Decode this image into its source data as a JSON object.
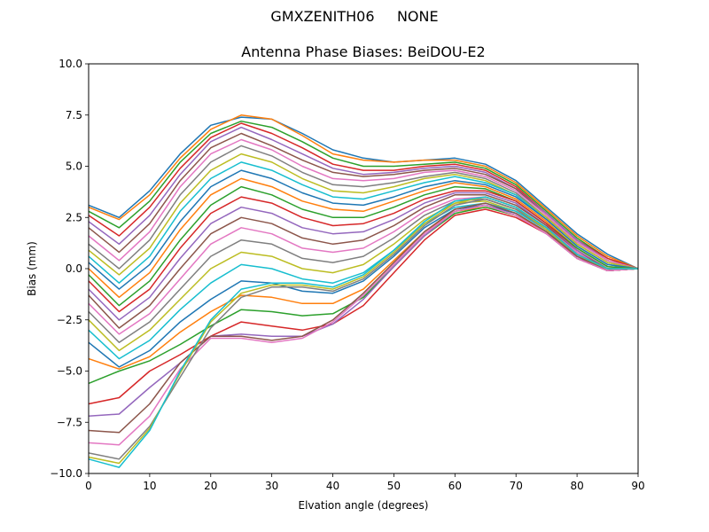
{
  "figure": {
    "suptitle": "GMXZENITH06     NONE"
  },
  "chart_data": {
    "type": "line",
    "title": "Antenna Phase Biases: BeiDOU-E2",
    "xlabel": "Elvation angle (degrees)",
    "ylabel": "Bias (mm)",
    "xlim": [
      0,
      90
    ],
    "ylim": [
      -10,
      10
    ],
    "xticks": [
      0,
      10,
      20,
      30,
      40,
      50,
      60,
      70,
      80,
      90
    ],
    "yticks": [
      -10.0,
      -7.5,
      -5.0,
      -2.5,
      0.0,
      2.5,
      5.0,
      7.5,
      10.0
    ],
    "xtick_labels": [
      "0",
      "10",
      "20",
      "30",
      "40",
      "50",
      "60",
      "70",
      "80",
      "90"
    ],
    "ytick_labels": [
      "−10.0",
      "−7.5",
      "−5.0",
      "−2.5",
      "0.0",
      "2.5",
      "5.0",
      "7.5",
      "10.0"
    ],
    "grid": false,
    "legend": "none",
    "colors": [
      "#1f77b4",
      "#ff7f0e",
      "#2ca02c",
      "#d62728",
      "#9467bd",
      "#8c564b",
      "#e377c2",
      "#7f7f7f",
      "#bcbd22",
      "#17becf"
    ],
    "x": [
      0,
      5,
      10,
      15,
      20,
      25,
      30,
      35,
      40,
      45,
      50,
      55,
      60,
      65,
      70,
      75,
      80,
      85,
      90
    ],
    "series": [
      {
        "values": [
          3.1,
          2.5,
          3.8,
          5.6,
          7.0,
          7.4,
          7.3,
          6.6,
          5.8,
          5.4,
          5.2,
          5.3,
          5.4,
          5.1,
          4.3,
          3.0,
          1.7,
          0.7,
          0.0
        ]
      },
      {
        "values": [
          3.0,
          2.4,
          3.6,
          5.4,
          6.8,
          7.5,
          7.3,
          6.5,
          5.6,
          5.3,
          5.2,
          5.3,
          5.3,
          5.0,
          4.2,
          2.9,
          1.6,
          0.6,
          0.0
        ]
      },
      {
        "values": [
          2.8,
          2.0,
          3.3,
          5.2,
          6.6,
          7.2,
          6.9,
          6.2,
          5.4,
          5.0,
          5.0,
          5.1,
          5.2,
          4.9,
          4.1,
          2.8,
          1.5,
          0.5,
          0.0
        ]
      },
      {
        "values": [
          2.6,
          1.6,
          3.0,
          4.9,
          6.4,
          7.1,
          6.6,
          5.9,
          5.1,
          4.8,
          4.8,
          5.0,
          5.1,
          4.8,
          4.0,
          2.7,
          1.4,
          0.5,
          0.0
        ]
      },
      {
        "values": [
          2.3,
          1.2,
          2.6,
          4.6,
          6.2,
          6.9,
          6.3,
          5.6,
          4.9,
          4.6,
          4.7,
          4.9,
          5.0,
          4.7,
          3.9,
          2.7,
          1.4,
          0.4,
          0.0
        ]
      },
      {
        "values": [
          2.0,
          0.8,
          2.2,
          4.3,
          5.9,
          6.6,
          6.0,
          5.3,
          4.7,
          4.5,
          4.6,
          4.8,
          4.9,
          4.6,
          3.9,
          2.6,
          1.3,
          0.4,
          0.0
        ]
      },
      {
        "values": [
          1.6,
          0.4,
          1.8,
          4.0,
          5.6,
          6.3,
          5.8,
          5.0,
          4.4,
          4.3,
          4.4,
          4.7,
          4.8,
          4.5,
          3.8,
          2.6,
          1.3,
          0.4,
          0.0
        ]
      },
      {
        "values": [
          1.2,
          0.0,
          1.4,
          3.6,
          5.2,
          6.0,
          5.5,
          4.7,
          4.1,
          4.0,
          4.2,
          4.5,
          4.7,
          4.4,
          3.7,
          2.5,
          1.2,
          0.3,
          0.0
        ]
      },
      {
        "values": [
          0.9,
          -0.3,
          1.0,
          3.2,
          4.8,
          5.6,
          5.2,
          4.4,
          3.8,
          3.7,
          4.0,
          4.4,
          4.6,
          4.3,
          3.6,
          2.5,
          1.2,
          0.3,
          0.0
        ]
      },
      {
        "values": [
          0.6,
          -0.7,
          0.6,
          2.8,
          4.4,
          5.2,
          4.8,
          4.1,
          3.5,
          3.4,
          3.8,
          4.2,
          4.5,
          4.2,
          3.6,
          2.4,
          1.1,
          0.2,
          0.0
        ]
      },
      {
        "values": [
          0.3,
          -1.0,
          0.2,
          2.3,
          4.0,
          4.8,
          4.4,
          3.7,
          3.2,
          3.1,
          3.5,
          4.0,
          4.3,
          4.1,
          3.5,
          2.4,
          1.1,
          0.2,
          0.0
        ]
      },
      {
        "values": [
          0.0,
          -1.4,
          -0.2,
          1.9,
          3.6,
          4.4,
          4.0,
          3.3,
          2.9,
          2.8,
          3.3,
          3.8,
          4.2,
          4.0,
          3.4,
          2.3,
          1.0,
          0.1,
          0.0
        ]
      },
      {
        "values": [
          -0.3,
          -1.8,
          -0.6,
          1.4,
          3.1,
          4.0,
          3.6,
          2.9,
          2.5,
          2.5,
          3.0,
          3.6,
          4.0,
          3.9,
          3.3,
          2.2,
          1.0,
          0.1,
          0.0
        ]
      },
      {
        "values": [
          -0.6,
          -2.1,
          -1.0,
          1.0,
          2.7,
          3.5,
          3.2,
          2.5,
          2.1,
          2.2,
          2.7,
          3.4,
          3.8,
          3.8,
          3.3,
          2.2,
          0.9,
          0.0,
          0.0
        ]
      },
      {
        "values": [
          -1.0,
          -2.5,
          -1.4,
          0.5,
          2.2,
          3.0,
          2.7,
          2.0,
          1.7,
          1.8,
          2.4,
          3.2,
          3.7,
          3.7,
          3.2,
          2.1,
          0.9,
          0.0,
          0.0
        ]
      },
      {
        "values": [
          -1.3,
          -2.9,
          -1.8,
          0.0,
          1.7,
          2.5,
          2.2,
          1.5,
          1.2,
          1.4,
          2.1,
          3.0,
          3.6,
          3.6,
          3.1,
          2.1,
          0.8,
          0.0,
          0.0
        ]
      },
      {
        "values": [
          -1.7,
          -3.2,
          -2.2,
          -0.5,
          1.2,
          2.0,
          1.7,
          1.0,
          0.8,
          1.0,
          1.8,
          2.8,
          3.4,
          3.5,
          3.0,
          2.0,
          0.8,
          -0.1,
          0.0
        ]
      },
      {
        "values": [
          -2.1,
          -3.6,
          -2.6,
          -1.0,
          0.6,
          1.4,
          1.2,
          0.5,
          0.3,
          0.6,
          1.5,
          2.6,
          3.3,
          3.4,
          2.9,
          2.0,
          0.7,
          -0.1,
          0.0
        ]
      },
      {
        "values": [
          -2.5,
          -4.0,
          -3.0,
          -1.5,
          0.0,
          0.8,
          0.6,
          0.0,
          -0.2,
          0.2,
          1.2,
          2.4,
          3.2,
          3.3,
          2.8,
          1.9,
          0.7,
          -0.1,
          0.0
        ]
      },
      {
        "values": [
          -3.0,
          -4.4,
          -3.5,
          -2.0,
          -0.7,
          0.2,
          0.0,
          -0.5,
          -0.7,
          -0.2,
          0.9,
          2.2,
          3.0,
          3.2,
          2.8,
          1.9,
          0.6,
          -0.1,
          0.0
        ]
      },
      {
        "values": [
          -3.6,
          -4.8,
          -4.0,
          -2.6,
          -1.5,
          -0.6,
          -0.7,
          -1.1,
          -1.2,
          -0.6,
          0.6,
          2.0,
          2.9,
          3.1,
          2.7,
          1.8,
          0.6,
          -0.1,
          0.0
        ]
      },
      {
        "values": [
          -4.4,
          -4.9,
          -4.3,
          -3.1,
          -2.1,
          -1.3,
          -1.4,
          -1.7,
          -1.7,
          -1.0,
          0.4,
          1.8,
          2.8,
          3.0,
          2.6,
          1.8,
          0.5,
          -0.1,
          0.0
        ]
      },
      {
        "values": [
          -5.6,
          -5.0,
          -4.5,
          -3.7,
          -2.8,
          -2.0,
          -2.1,
          -2.3,
          -2.2,
          -1.4,
          0.1,
          1.6,
          2.7,
          3.0,
          2.6,
          1.7,
          0.5,
          -0.1,
          0.0
        ]
      },
      {
        "values": [
          -6.6,
          -6.3,
          -5.0,
          -4.2,
          -3.3,
          -2.6,
          -2.8,
          -3.0,
          -2.7,
          -1.8,
          -0.2,
          1.4,
          2.6,
          2.9,
          2.5,
          1.7,
          0.5,
          -0.1,
          0.0
        ]
      },
      {
        "values": [
          -7.2,
          -7.1,
          -5.8,
          -4.6,
          -3.3,
          -3.2,
          -3.3,
          -3.3,
          -2.7,
          -1.5,
          0.1,
          1.6,
          2.8,
          3.1,
          2.6,
          1.7,
          0.5,
          -0.1,
          0.0
        ]
      },
      {
        "values": [
          -7.9,
          -8.0,
          -6.6,
          -4.6,
          -3.3,
          -3.3,
          -3.5,
          -3.3,
          -2.5,
          -1.2,
          0.3,
          1.8,
          2.9,
          3.2,
          2.7,
          1.8,
          0.6,
          -0.1,
          0.0
        ]
      },
      {
        "values": [
          -8.5,
          -8.6,
          -7.2,
          -4.9,
          -3.4,
          -3.4,
          -3.6,
          -3.4,
          -2.6,
          -1.3,
          0.2,
          1.7,
          2.8,
          3.1,
          2.6,
          1.7,
          0.5,
          -0.1,
          0.0
        ]
      },
      {
        "values": [
          -9.0,
          -9.3,
          -7.7,
          -5.3,
          -2.9,
          -1.4,
          -0.9,
          -0.9,
          -1.1,
          -0.5,
          0.7,
          2.1,
          3.1,
          3.4,
          2.9,
          1.9,
          0.7,
          0.0,
          0.0
        ]
      },
      {
        "values": [
          -9.2,
          -9.5,
          -7.8,
          -5.1,
          -2.6,
          -1.2,
          -0.8,
          -0.8,
          -1.0,
          -0.4,
          0.8,
          2.2,
          3.2,
          3.5,
          3.0,
          1.9,
          0.7,
          0.0,
          0.0
        ]
      },
      {
        "values": [
          -9.3,
          -9.7,
          -7.9,
          -5.0,
          -2.5,
          -1.0,
          -0.7,
          -0.7,
          -0.9,
          -0.3,
          0.9,
          2.3,
          3.3,
          3.5,
          3.0,
          2.0,
          0.7,
          0.0,
          0.0
        ]
      }
    ]
  }
}
